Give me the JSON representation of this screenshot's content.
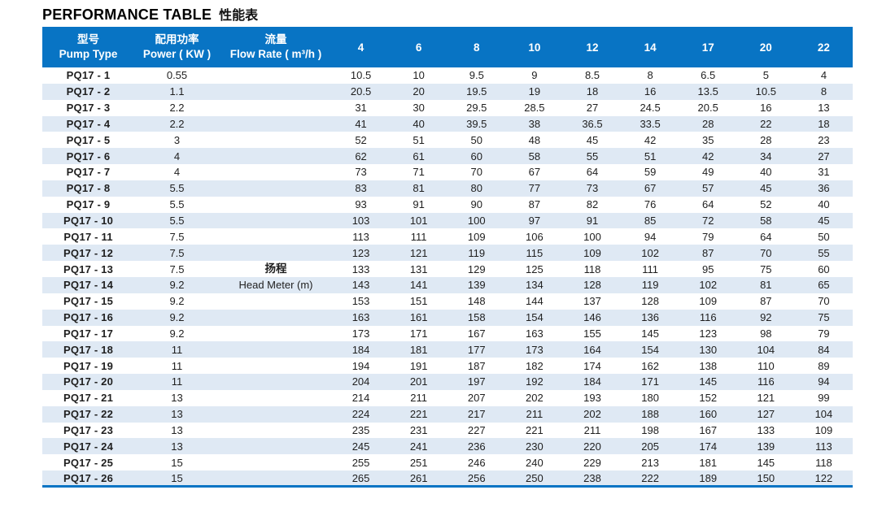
{
  "title": {
    "en": "PERFORMANCE TABLE",
    "cn": "性能表"
  },
  "colors": {
    "header_bg": "#0874C4",
    "stripe": "#DFE9F4",
    "body_text": "#1F1F1F",
    "header_text": "#FFFFFF",
    "bottom_border": "#0874C4"
  },
  "table": {
    "columns": {
      "pump_type": {
        "cn": "型号",
        "en": "Pump Type"
      },
      "power": {
        "cn": "配用功率",
        "en": "Power ( KW )"
      },
      "flow_rate": {
        "cn": "流量",
        "en": "Flow Rate ( m³/h )"
      }
    },
    "flow_columns": [
      "4",
      "6",
      "8",
      "10",
      "12",
      "14",
      "17",
      "20",
      "22"
    ],
    "rows": [
      {
        "pump_type": "PQ17 - 1",
        "power": "0.55",
        "note": "",
        "note_bold": false,
        "values": [
          "10.5",
          "10",
          "9.5",
          "9",
          "8.5",
          "8",
          "6.5",
          "5",
          "4"
        ]
      },
      {
        "pump_type": "PQ17 - 2",
        "power": "1.1",
        "note": "",
        "note_bold": false,
        "values": [
          "20.5",
          "20",
          "19.5",
          "19",
          "18",
          "16",
          "13.5",
          "10.5",
          "8"
        ]
      },
      {
        "pump_type": "PQ17 - 3",
        "power": "2.2",
        "note": "",
        "note_bold": false,
        "values": [
          "31",
          "30",
          "29.5",
          "28.5",
          "27",
          "24.5",
          "20.5",
          "16",
          "13"
        ]
      },
      {
        "pump_type": "PQ17 - 4",
        "power": "2.2",
        "note": "",
        "note_bold": false,
        "values": [
          "41",
          "40",
          "39.5",
          "38",
          "36.5",
          "33.5",
          "28",
          "22",
          "18"
        ]
      },
      {
        "pump_type": "PQ17 - 5",
        "power": "3",
        "note": "",
        "note_bold": false,
        "values": [
          "52",
          "51",
          "50",
          "48",
          "45",
          "42",
          "35",
          "28",
          "23"
        ]
      },
      {
        "pump_type": "PQ17 - 6",
        "power": "4",
        "note": "",
        "note_bold": false,
        "values": [
          "62",
          "61",
          "60",
          "58",
          "55",
          "51",
          "42",
          "34",
          "27"
        ]
      },
      {
        "pump_type": "PQ17 - 7",
        "power": "4",
        "note": "",
        "note_bold": false,
        "values": [
          "73",
          "71",
          "70",
          "67",
          "64",
          "59",
          "49",
          "40",
          "31"
        ]
      },
      {
        "pump_type": "PQ17 - 8",
        "power": "5.5",
        "note": "",
        "note_bold": false,
        "values": [
          "83",
          "81",
          "80",
          "77",
          "73",
          "67",
          "57",
          "45",
          "36"
        ]
      },
      {
        "pump_type": "PQ17 - 9",
        "power": "5.5",
        "note": "",
        "note_bold": false,
        "values": [
          "93",
          "91",
          "90",
          "87",
          "82",
          "76",
          "64",
          "52",
          "40"
        ]
      },
      {
        "pump_type": "PQ17 - 10",
        "power": "5.5",
        "note": "",
        "note_bold": false,
        "values": [
          "103",
          "101",
          "100",
          "97",
          "91",
          "85",
          "72",
          "58",
          "45"
        ]
      },
      {
        "pump_type": "PQ17 - 11",
        "power": "7.5",
        "note": "",
        "note_bold": false,
        "values": [
          "113",
          "111",
          "109",
          "106",
          "100",
          "94",
          "79",
          "64",
          "50"
        ]
      },
      {
        "pump_type": "PQ17 - 12",
        "power": "7.5",
        "note": "",
        "note_bold": false,
        "values": [
          "123",
          "121",
          "119",
          "115",
          "109",
          "102",
          "87",
          "70",
          "55"
        ]
      },
      {
        "pump_type": "PQ17 - 13",
        "power": "7.5",
        "note": "扬程",
        "note_bold": true,
        "values": [
          "133",
          "131",
          "129",
          "125",
          "118",
          "111",
          "95",
          "75",
          "60"
        ]
      },
      {
        "pump_type": "PQ17 - 14",
        "power": "9.2",
        "note": "Head Meter (m)",
        "note_bold": false,
        "values": [
          "143",
          "141",
          "139",
          "134",
          "128",
          "119",
          "102",
          "81",
          "65"
        ]
      },
      {
        "pump_type": "PQ17 - 15",
        "power": "9.2",
        "note": "",
        "note_bold": false,
        "values": [
          "153",
          "151",
          "148",
          "144",
          "137",
          "128",
          "109",
          "87",
          "70"
        ]
      },
      {
        "pump_type": "PQ17 - 16",
        "power": "9.2",
        "note": "",
        "note_bold": false,
        "values": [
          "163",
          "161",
          "158",
          "154",
          "146",
          "136",
          "116",
          "92",
          "75"
        ]
      },
      {
        "pump_type": "PQ17 - 17",
        "power": "9.2",
        "note": "",
        "note_bold": false,
        "values": [
          "173",
          "171",
          "167",
          "163",
          "155",
          "145",
          "123",
          "98",
          "79"
        ]
      },
      {
        "pump_type": "PQ17 - 18",
        "power": "11",
        "note": "",
        "note_bold": false,
        "values": [
          "184",
          "181",
          "177",
          "173",
          "164",
          "154",
          "130",
          "104",
          "84"
        ]
      },
      {
        "pump_type": "PQ17 - 19",
        "power": "11",
        "note": "",
        "note_bold": false,
        "values": [
          "194",
          "191",
          "187",
          "182",
          "174",
          "162",
          "138",
          "110",
          "89"
        ]
      },
      {
        "pump_type": "PQ17 - 20",
        "power": "11",
        "note": "",
        "note_bold": false,
        "values": [
          "204",
          "201",
          "197",
          "192",
          "184",
          "171",
          "145",
          "116",
          "94"
        ]
      },
      {
        "pump_type": "PQ17 - 21",
        "power": "13",
        "note": "",
        "note_bold": false,
        "values": [
          "214",
          "211",
          "207",
          "202",
          "193",
          "180",
          "152",
          "121",
          "99"
        ]
      },
      {
        "pump_type": "PQ17 - 22",
        "power": "13",
        "note": "",
        "note_bold": false,
        "values": [
          "224",
          "221",
          "217",
          "211",
          "202",
          "188",
          "160",
          "127",
          "104"
        ]
      },
      {
        "pump_type": "PQ17 - 23",
        "power": "13",
        "note": "",
        "note_bold": false,
        "values": [
          "235",
          "231",
          "227",
          "221",
          "211",
          "198",
          "167",
          "133",
          "109"
        ]
      },
      {
        "pump_type": "PQ17 - 24",
        "power": "13",
        "note": "",
        "note_bold": false,
        "values": [
          "245",
          "241",
          "236",
          "230",
          "220",
          "205",
          "174",
          "139",
          "113"
        ]
      },
      {
        "pump_type": "PQ17 - 25",
        "power": "15",
        "note": "",
        "note_bold": false,
        "values": [
          "255",
          "251",
          "246",
          "240",
          "229",
          "213",
          "181",
          "145",
          "118"
        ]
      },
      {
        "pump_type": "PQ17 - 26",
        "power": "15",
        "note": "",
        "note_bold": false,
        "values": [
          "265",
          "261",
          "256",
          "250",
          "238",
          "222",
          "189",
          "150",
          "122"
        ]
      }
    ]
  }
}
